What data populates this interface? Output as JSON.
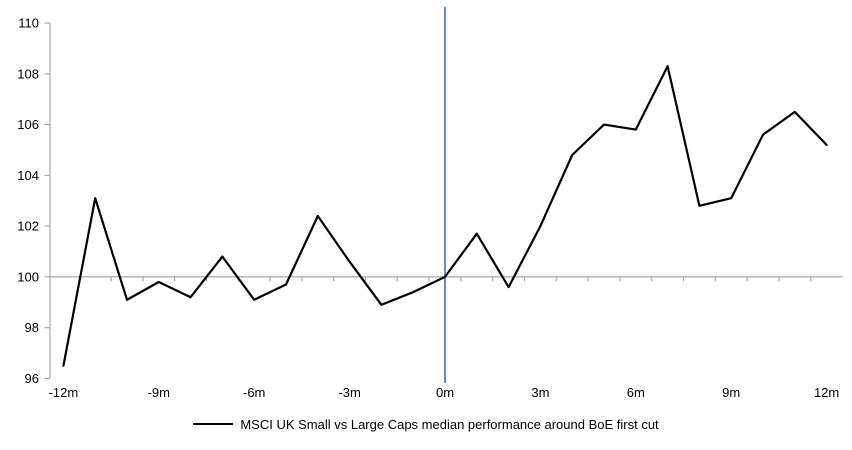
{
  "chart_data": {
    "type": "line",
    "x": [
      -12,
      -11,
      -10,
      -9,
      -8,
      -7,
      -6,
      -5,
      -4,
      -3,
      -2,
      -1,
      0,
      1,
      2,
      3,
      4,
      5,
      6,
      7,
      8,
      9,
      10,
      11,
      12
    ],
    "series": [
      {
        "name": "MSCI UK Small vs Large Caps median performance around BoE first cut",
        "values": [
          96.5,
          103.1,
          99.1,
          99.8,
          99.2,
          100.8,
          99.1,
          99.7,
          102.4,
          100.6,
          98.9,
          99.4,
          100.0,
          101.7,
          99.6,
          102.0,
          104.8,
          106.0,
          105.8,
          108.3,
          102.8,
          103.1,
          105.6,
          106.5,
          105.2
        ]
      }
    ],
    "title": "",
    "xlabel": "",
    "ylabel": "",
    "ylim": [
      96,
      110
    ],
    "xlim": [
      -12.5,
      12.5
    ],
    "y_ticks": [
      110,
      108,
      106,
      104,
      102,
      100,
      98,
      96
    ],
    "x_tick_positions": [
      -12,
      -9,
      -6,
      -3,
      0,
      3,
      6,
      9,
      12
    ],
    "x_tick_labels": [
      "-12m",
      "-9m",
      "-6m",
      "-3m",
      "0m",
      "3m",
      "6m",
      "9m",
      "12m"
    ],
    "baseline_value": 100,
    "event_line_x": 0,
    "grid": "off",
    "legend_position": "bottom-center"
  },
  "legend": {
    "label": "MSCI UK Small vs Large Caps median performance around BoE first cut"
  },
  "colors": {
    "series_line": "#000000",
    "event_line": "#4f81bd",
    "baseline": "#a6a6a6",
    "axis": "#a6a6a6",
    "tick": "#a6a6a6",
    "text": "#000000",
    "background": "#ffffff"
  }
}
